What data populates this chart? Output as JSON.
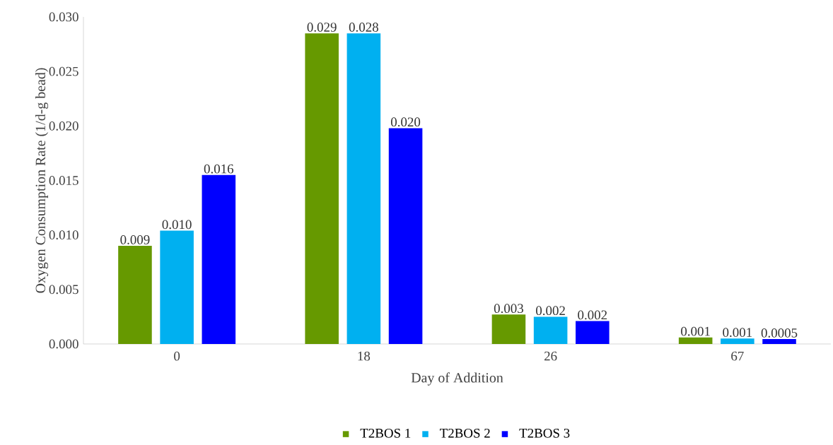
{
  "chart_data": {
    "type": "bar",
    "xlabel": "Day of Addition",
    "ylabel": "Oxygen Consumption Rate (1/d-g bead)",
    "categories": [
      "0",
      "18",
      "26",
      "67"
    ],
    "series": [
      {
        "name": "T2BOS 1",
        "color": "#669900",
        "values": [
          0.009,
          0.0285,
          0.0027,
          0.0006
        ],
        "value_labels": [
          "0.009",
          "0.029",
          "0.003",
          "0.001"
        ]
      },
      {
        "name": "T2BOS 2",
        "color": "#00b0f0",
        "values": [
          0.0104,
          0.0285,
          0.0025,
          0.0005
        ],
        "value_labels": [
          "0.010",
          "0.028",
          "0.002",
          "0.001"
        ]
      },
      {
        "name": "T2BOS 3",
        "color": "#0000ff",
        "values": [
          0.0155,
          0.0198,
          0.0021,
          0.00045
        ],
        "value_labels": [
          "0.016",
          "0.020",
          "0.002",
          "0.0005"
        ]
      }
    ],
    "ylim": [
      0,
      0.03
    ],
    "yticks": [
      {
        "value": 0,
        "label": "0.000"
      },
      {
        "value": 0.005,
        "label": "0.005"
      },
      {
        "value": 0.01,
        "label": "0.010"
      },
      {
        "value": 0.015,
        "label": "0.015"
      },
      {
        "value": 0.02,
        "label": "0.020"
      },
      {
        "value": 0.025,
        "label": "0.025"
      },
      {
        "value": 0.03,
        "label": "0.030"
      }
    ],
    "grid": false,
    "legend": "bottom"
  }
}
